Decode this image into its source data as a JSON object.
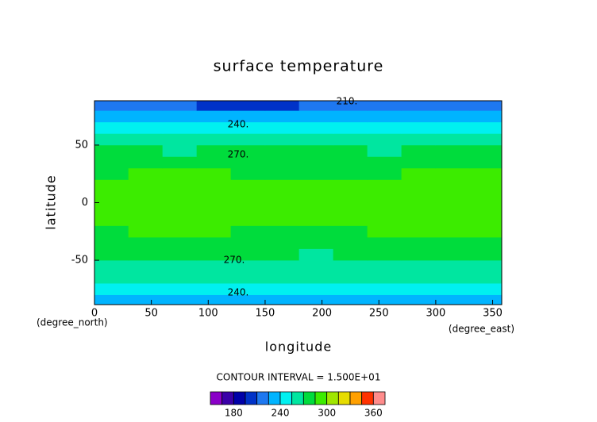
{
  "chart_data": {
    "type": "contour",
    "title": "surface temperature",
    "x_label": "longitude",
    "y_label": "latitude",
    "x_unit": "(degree_east)",
    "y_unit": "(degree_north)",
    "contour_interval": "CONTOUR INTERVAL = 1.500E+01",
    "x": [
      15,
      45,
      75,
      105,
      135,
      165,
      195,
      225,
      255,
      285,
      315,
      345
    ],
    "y": [
      -85,
      -75,
      -65,
      -55,
      -45,
      -35,
      -25,
      -15,
      -5,
      5,
      15,
      25,
      35,
      45,
      55,
      65,
      75,
      85
    ],
    "z": [
      [
        238,
        238,
        239,
        238,
        238,
        237,
        238,
        238,
        239,
        238,
        238,
        238
      ],
      [
        248,
        248,
        249,
        248,
        248,
        248,
        248,
        248,
        249,
        248,
        248,
        248
      ],
      [
        256,
        256,
        257,
        256,
        256,
        256,
        256,
        256,
        257,
        256,
        256,
        256
      ],
      [
        263,
        263,
        264,
        263,
        262,
        263,
        263,
        263,
        264,
        263,
        263,
        263
      ],
      [
        270,
        271,
        271,
        271,
        270,
        270,
        269,
        270,
        270,
        270,
        271,
        271
      ],
      [
        280,
        281,
        281,
        280,
        279,
        280,
        279,
        280,
        280,
        281,
        281,
        281
      ],
      [
        284,
        286,
        287,
        286,
        284,
        284,
        283,
        284,
        285,
        286,
        287,
        286
      ],
      [
        291,
        293,
        294,
        293,
        292,
        292,
        291,
        292,
        293,
        294,
        294,
        293
      ],
      [
        295,
        296,
        297,
        296,
        295,
        295,
        294,
        295,
        296,
        297,
        297,
        296
      ],
      [
        295,
        296,
        297,
        296,
        295,
        295,
        294,
        295,
        296,
        297,
        297,
        296
      ],
      [
        288,
        290,
        291,
        290,
        287,
        286,
        285,
        286,
        288,
        290,
        291,
        290
      ],
      [
        284,
        287,
        288,
        287,
        283,
        282,
        282,
        283,
        284,
        286,
        288,
        287
      ],
      [
        278,
        280,
        280,
        280,
        278,
        278,
        277,
        278,
        279,
        280,
        280,
        280
      ],
      [
        270,
        270,
        269,
        271,
        271,
        271,
        271,
        271,
        269,
        271,
        272,
        271
      ],
      [
        260,
        260,
        259,
        260,
        261,
        260,
        260,
        260,
        260,
        261,
        261,
        260
      ],
      [
        244,
        244,
        243,
        244,
        244,
        244,
        244,
        244,
        244,
        244,
        244,
        244
      ],
      [
        230,
        230,
        229,
        230,
        230,
        230,
        230,
        230,
        230,
        230,
        230,
        230
      ],
      [
        214,
        213,
        210,
        208,
        208,
        209,
        211,
        212,
        214,
        214,
        213,
        213
      ]
    ],
    "xlim": [
      0,
      358
    ],
    "ylim": [
      -88.5,
      88.5
    ],
    "xticks": [
      0,
      50,
      100,
      150,
      200,
      250,
      300,
      350
    ],
    "yticks": [
      -50,
      0,
      50
    ],
    "contour_labels": [
      "210.",
      "240.",
      "270.",
      "270.",
      "240."
    ],
    "colorbar": {
      "levels": [
        150,
        165,
        180,
        195,
        210,
        225,
        240,
        255,
        270,
        285,
        300,
        315,
        330,
        345,
        360,
        375
      ],
      "colors": [
        "#8a00c8",
        "#3a00a8",
        "#0000a8",
        "#0032c8",
        "#1e78f0",
        "#00b4ff",
        "#00f0f0",
        "#00e6a0",
        "#00dc3c",
        "#3cec00",
        "#a0e600",
        "#e6dc00",
        "#ffa000",
        "#ff3200",
        "#ff8c8c"
      ],
      "ticks": [
        180,
        240,
        300,
        360
      ]
    }
  }
}
